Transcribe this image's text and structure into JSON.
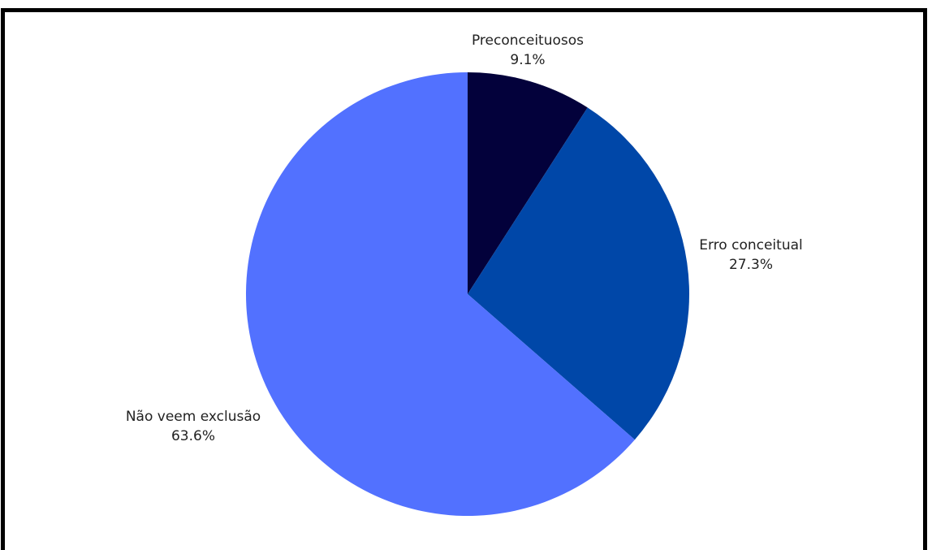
{
  "chart_data": {
    "type": "pie",
    "title": "",
    "start_angle_deg": 0,
    "direction": "clockwise",
    "slices": [
      {
        "label": "Preconceituosos",
        "value": 9.1,
        "value_label": "9.1%",
        "color": "#03013b"
      },
      {
        "label": "Erro conceitual",
        "value": 27.3,
        "value_label": "27.3%",
        "color": "#0047a8"
      },
      {
        "label": "Não veem exclusão",
        "value": 63.6,
        "value_label": "63.6%",
        "color": "#5271ff"
      }
    ]
  }
}
